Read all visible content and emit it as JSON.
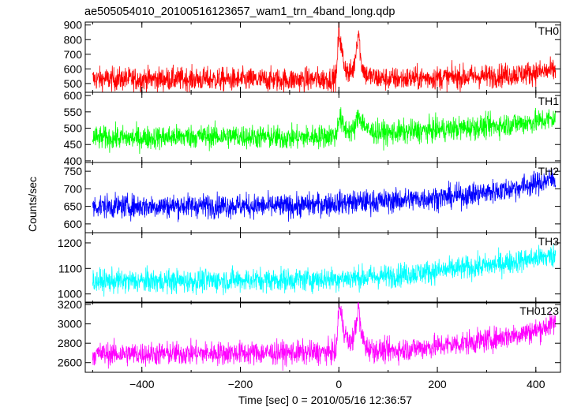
{
  "chart_data": {
    "type": "line",
    "title": "ae505054010_20100516123657_wam1_trn_4band_long.qdp",
    "xlabel": "Time [sec] 0 = 2010/05/16 12:36:57",
    "ylabel": "Counts/sec",
    "xlim": [
      -515,
      450
    ],
    "x_ticks": [
      "−400",
      "−200",
      "0",
      "200",
      "400"
    ],
    "x_tick_values": [
      -400,
      -200,
      0,
      200,
      400
    ],
    "series": [
      {
        "name": "TH0",
        "color": "#ff0000",
        "ylim": [
          440,
          920
        ],
        "y_ticks": [
          "500",
          "600",
          "700",
          "800",
          "900"
        ],
        "y_tick_values": [
          500,
          600,
          700,
          800,
          900
        ],
        "x": [
          -500,
          -400,
          -300,
          -200,
          -100,
          -20,
          -5,
          0,
          5,
          10,
          20,
          30,
          40,
          45,
          55,
          70,
          100,
          200,
          300,
          350,
          400,
          440
        ],
        "y": [
          530,
          530,
          530,
          525,
          525,
          530,
          545,
          870,
          740,
          640,
          560,
          600,
          870,
          640,
          560,
          540,
          530,
          540,
          550,
          560,
          575,
          590
        ]
      },
      {
        "name": "TH1",
        "color": "#00ff00",
        "ylim": [
          395,
          610
        ],
        "y_ticks": [
          "400",
          "450",
          "500",
          "550",
          "600"
        ],
        "y_tick_values": [
          400,
          450,
          500,
          550,
          600
        ],
        "x": [
          -500,
          -400,
          -300,
          -200,
          -100,
          -5,
          0,
          10,
          30,
          40,
          60,
          100,
          200,
          300,
          400,
          440
        ],
        "y": [
          470,
          470,
          475,
          475,
          470,
          478,
          540,
          500,
          490,
          540,
          490,
          485,
          495,
          505,
          520,
          530
        ]
      },
      {
        "name": "TH2",
        "color": "#0000ff",
        "ylim": [
          575,
          775
        ],
        "y_ticks": [
          "600",
          "650",
          "700",
          "750"
        ],
        "y_tick_values": [
          600,
          650,
          700,
          750
        ],
        "x": [
          -500,
          -400,
          -300,
          -200,
          -100,
          0,
          100,
          200,
          250,
          300,
          350,
          400,
          440
        ],
        "y": [
          650,
          650,
          652,
          652,
          650,
          660,
          665,
          675,
          680,
          690,
          700,
          715,
          730
        ]
      },
      {
        "name": "TH3",
        "color": "#00ffff",
        "ylim": [
          965,
          1240
        ],
        "y_ticks": [
          "1000",
          "1100",
          "1200"
        ],
        "y_tick_values": [
          1000,
          1100,
          1200
        ],
        "x": [
          -500,
          -400,
          -300,
          -200,
          -100,
          0,
          100,
          200,
          300,
          400,
          440
        ],
        "y": [
          1050,
          1050,
          1050,
          1055,
          1055,
          1060,
          1070,
          1090,
          1110,
          1140,
          1150
        ]
      },
      {
        "name": "TH0123",
        "color": "#ff00ff",
        "ylim": [
          2500,
          3225
        ],
        "y_ticks": [
          "2600",
          "2800",
          "3000",
          "3200"
        ],
        "y_tick_values": [
          2600,
          2800,
          3000,
          3200
        ],
        "x": [
          -500,
          -400,
          -300,
          -200,
          -100,
          -20,
          -5,
          0,
          10,
          20,
          30,
          40,
          45,
          55,
          70,
          100,
          200,
          300,
          400,
          440
        ],
        "y": [
          2690,
          2690,
          2695,
          2700,
          2700,
          2705,
          2720,
          3200,
          2950,
          2800,
          2850,
          3180,
          2900,
          2760,
          2730,
          2720,
          2770,
          2830,
          2930,
          3010
        ]
      }
    ]
  }
}
